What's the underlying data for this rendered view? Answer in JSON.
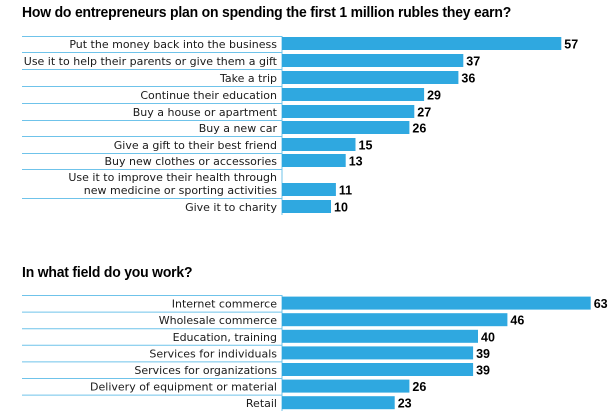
{
  "colors": {
    "bar": "#2fa8e0",
    "rule": "#6fc3ea",
    "text": "#1a1a1a"
  },
  "chart_data": [
    {
      "type": "bar",
      "orientation": "horizontal",
      "title": "How do entrepreneurs plan on spending the first 1 million rubles they earn?",
      "categories": [
        "Put the money back into the business",
        "Use it to help their parents or give them a gift",
        "Take a trip",
        "Continue their education",
        "Buy a house or apartment",
        "Buy a new car",
        "Give a gift to their best friend",
        "Buy new clothes or accessories",
        "Use it to improve their health through\nnew medicine or sporting activities",
        "Give it to charity"
      ],
      "values": [
        57,
        37,
        36,
        29,
        27,
        26,
        15,
        13,
        11,
        10
      ],
      "grid": false
    },
    {
      "type": "bar",
      "orientation": "horizontal",
      "title": "In what field do you work?",
      "categories": [
        "Internet commerce",
        "Wholesale commerce",
        "Education, training",
        "Services for individuals",
        "Services for organizations",
        "Delivery of equipment or material",
        "Retail"
      ],
      "values": [
        63,
        46,
        40,
        39,
        39,
        26,
        23
      ],
      "grid": false
    }
  ]
}
